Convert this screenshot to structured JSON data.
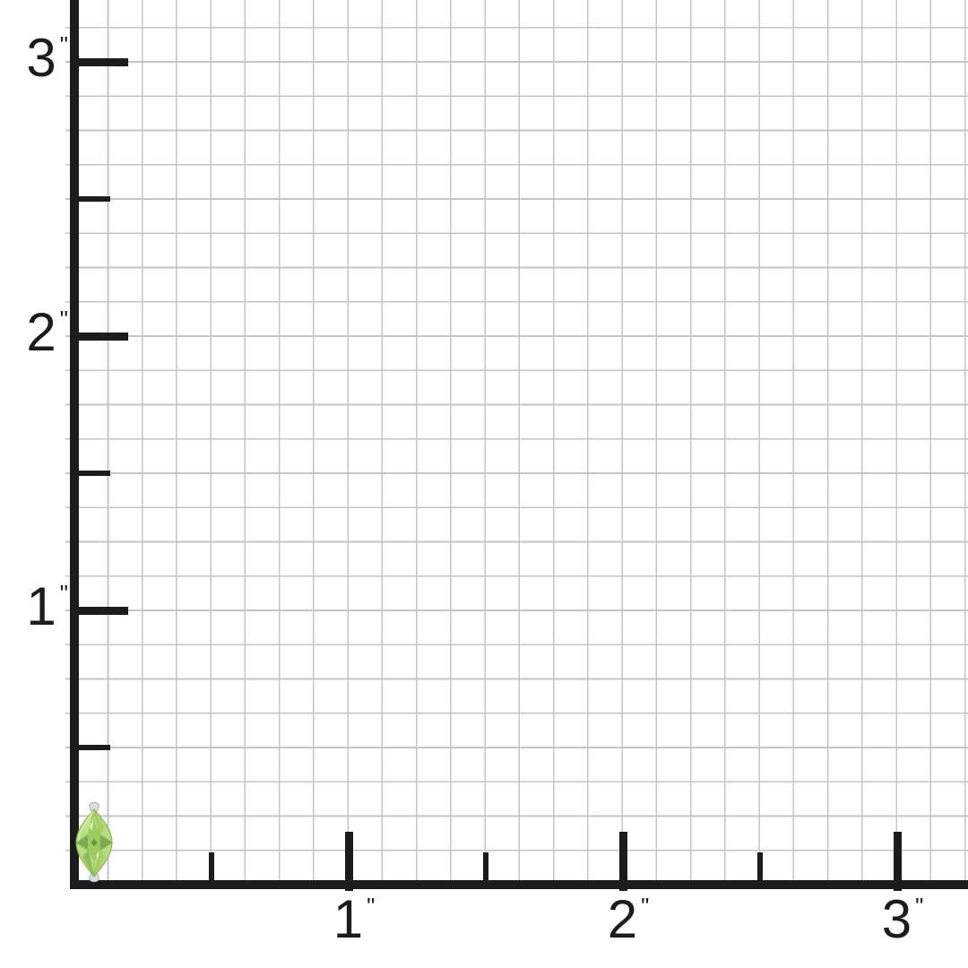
{
  "scene": {
    "description": "Marquise peridot gemstone shown on an inch ruler grid for size reference",
    "background_color": "#ffffff",
    "grid_color": "#c5c5c5",
    "axis_color": "#1c1c1c",
    "unit_symbol": "\"",
    "y_axis_labels": [
      {
        "digit": "3",
        "suffix": "\"",
        "inches": 3
      },
      {
        "digit": "2",
        "suffix": "\"",
        "inches": 2
      },
      {
        "digit": "1",
        "suffix": "\"",
        "inches": 1
      }
    ],
    "x_axis_labels": [
      {
        "digit": "1",
        "suffix": "\"",
        "inches": 1
      },
      {
        "digit": "2",
        "suffix": "\"",
        "inches": 2
      },
      {
        "digit": "3",
        "suffix": "\"",
        "inches": 3
      }
    ],
    "gem": {
      "name": "marquise-cut peridot with silver prongs",
      "colors": {
        "body_light": "#cdea96",
        "body_mid": "#aed76e",
        "facet_dark": "#7fa94e",
        "facet_deep": "#6d9440",
        "highlight": "#eff8d8",
        "outline": "#8aad55",
        "prong": "#dadee1",
        "prong_edge": "#a6acb1"
      }
    }
  }
}
